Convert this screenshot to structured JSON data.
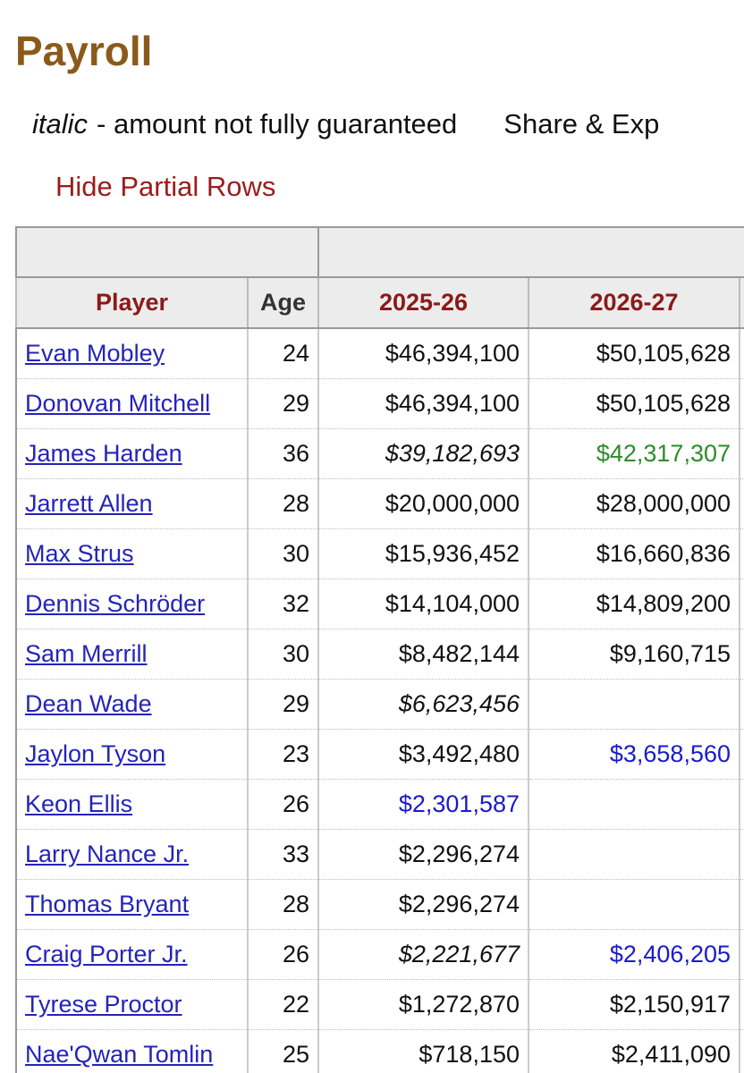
{
  "header": {
    "title": "Payroll"
  },
  "legend": {
    "italic_label": "italic",
    "italic_text": "- amount not fully guaranteed",
    "share": "Share & Exp"
  },
  "toggle": "Hide Partial Rows",
  "table": {
    "columns": [
      "Player",
      "Age",
      "2025-26",
      "2026-27"
    ],
    "rows": [
      [
        "Evan Mobley",
        24,
        "$46,394,100",
        "$50,105,628"
      ],
      [
        "Donovan Mitchell",
        29,
        "$46,394,100",
        "$50,105,628"
      ],
      [
        "James Harden",
        36,
        {
          "text": "$39,182,693",
          "italic": true
        },
        {
          "text": "$42,317,307",
          "color": "#2e8b2e"
        }
      ],
      [
        "Jarrett Allen",
        28,
        "$20,000,000",
        "$28,000,000"
      ],
      [
        "Max Strus",
        30,
        "$15,936,452",
        "$16,660,836"
      ],
      [
        "Dennis Schröder",
        32,
        "$14,104,000",
        "$14,809,200"
      ],
      [
        "Sam Merrill",
        30,
        "$8,482,144",
        "$9,160,715"
      ],
      [
        "Dean Wade",
        29,
        {
          "text": "$6,623,456",
          "italic": true
        },
        null
      ],
      [
        "Jaylon Tyson",
        23,
        "$3,492,480",
        {
          "text": "$3,658,560",
          "color": "#1a1acc"
        }
      ],
      [
        "Keon Ellis",
        26,
        {
          "text": "$2,301,587",
          "color": "#1a1acc"
        },
        null
      ],
      [
        "Larry Nance Jr.",
        33,
        "$2,296,274",
        null
      ],
      [
        "Thomas Bryant",
        28,
        "$2,296,274",
        null
      ],
      [
        "Craig Porter Jr.",
        26,
        {
          "text": "$2,221,677",
          "italic": true
        },
        {
          "text": "$2,406,205",
          "color": "#1a1acc"
        }
      ],
      [
        "Tyrese Proctor",
        22,
        "$1,272,870",
        "$2,150,917"
      ],
      [
        "Nae'Qwan Tomlin",
        25,
        "$718,150",
        "$2,411,090"
      ]
    ]
  }
}
